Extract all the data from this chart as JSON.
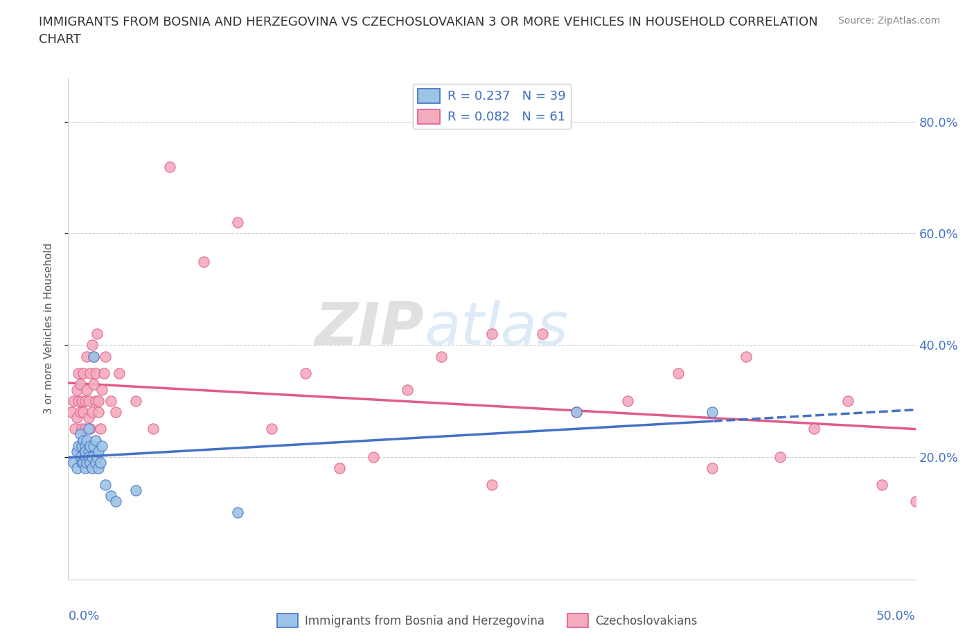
{
  "title": "IMMIGRANTS FROM BOSNIA AND HERZEGOVINA VS CZECHOSLOVAKIAN 3 OR MORE VEHICLES IN HOUSEHOLD CORRELATION\nCHART",
  "source": "Source: ZipAtlas.com",
  "ylabel": "3 or more Vehicles in Household",
  "ytick_vals": [
    0.2,
    0.4,
    0.6,
    0.8
  ],
  "ytick_labels": [
    "20.0%",
    "40.0%",
    "60.0%",
    "80.0%"
  ],
  "xlim": [
    0.0,
    0.5
  ],
  "ylim": [
    -0.02,
    0.88
  ],
  "blue_R": 0.237,
  "blue_N": 39,
  "pink_R": 0.082,
  "pink_N": 61,
  "blue_color": "#9DC3E6",
  "pink_color": "#F4ABBD",
  "blue_edge_color": "#4472C4",
  "pink_edge_color": "#E05C8A",
  "blue_trend_color": "#4472C4",
  "pink_trend_color": "#E05C8A",
  "legend_label_blue": "Immigrants from Bosnia and Herzegovina",
  "legend_label_pink": "Czechoslovakians",
  "blue_scatter_x": [
    0.003,
    0.005,
    0.005,
    0.006,
    0.007,
    0.007,
    0.008,
    0.008,
    0.009,
    0.009,
    0.01,
    0.01,
    0.01,
    0.01,
    0.011,
    0.011,
    0.012,
    0.012,
    0.012,
    0.013,
    0.013,
    0.014,
    0.014,
    0.015,
    0.015,
    0.016,
    0.016,
    0.017,
    0.018,
    0.018,
    0.019,
    0.02,
    0.022,
    0.025,
    0.028,
    0.04,
    0.1,
    0.3,
    0.38
  ],
  "blue_scatter_y": [
    0.19,
    0.21,
    0.18,
    0.22,
    0.2,
    0.24,
    0.19,
    0.22,
    0.19,
    0.23,
    0.2,
    0.22,
    0.18,
    0.21,
    0.23,
    0.19,
    0.21,
    0.2,
    0.25,
    0.19,
    0.22,
    0.18,
    0.2,
    0.38,
    0.22,
    0.19,
    0.23,
    0.2,
    0.18,
    0.21,
    0.19,
    0.22,
    0.15,
    0.13,
    0.12,
    0.14,
    0.1,
    0.28,
    0.28
  ],
  "pink_scatter_x": [
    0.002,
    0.003,
    0.004,
    0.005,
    0.005,
    0.006,
    0.006,
    0.007,
    0.007,
    0.008,
    0.008,
    0.009,
    0.009,
    0.01,
    0.01,
    0.011,
    0.011,
    0.012,
    0.012,
    0.013,
    0.013,
    0.014,
    0.014,
    0.015,
    0.015,
    0.016,
    0.016,
    0.017,
    0.018,
    0.018,
    0.019,
    0.02,
    0.021,
    0.022,
    0.025,
    0.028,
    0.03,
    0.04,
    0.05,
    0.06,
    0.08,
    0.1,
    0.12,
    0.14,
    0.16,
    0.18,
    0.2,
    0.22,
    0.25,
    0.28,
    0.3,
    0.33,
    0.36,
    0.38,
    0.4,
    0.42,
    0.44,
    0.46,
    0.48,
    0.5,
    0.25
  ],
  "pink_scatter_y": [
    0.28,
    0.3,
    0.25,
    0.32,
    0.27,
    0.35,
    0.3,
    0.28,
    0.33,
    0.25,
    0.3,
    0.35,
    0.28,
    0.3,
    0.25,
    0.32,
    0.38,
    0.27,
    0.3,
    0.35,
    0.25,
    0.28,
    0.4,
    0.33,
    0.38,
    0.3,
    0.35,
    0.42,
    0.28,
    0.3,
    0.25,
    0.32,
    0.35,
    0.38,
    0.3,
    0.28,
    0.35,
    0.3,
    0.25,
    0.72,
    0.55,
    0.62,
    0.25,
    0.35,
    0.18,
    0.2,
    0.32,
    0.38,
    0.15,
    0.42,
    0.28,
    0.3,
    0.35,
    0.18,
    0.38,
    0.2,
    0.25,
    0.3,
    0.15,
    0.12,
    0.42
  ]
}
